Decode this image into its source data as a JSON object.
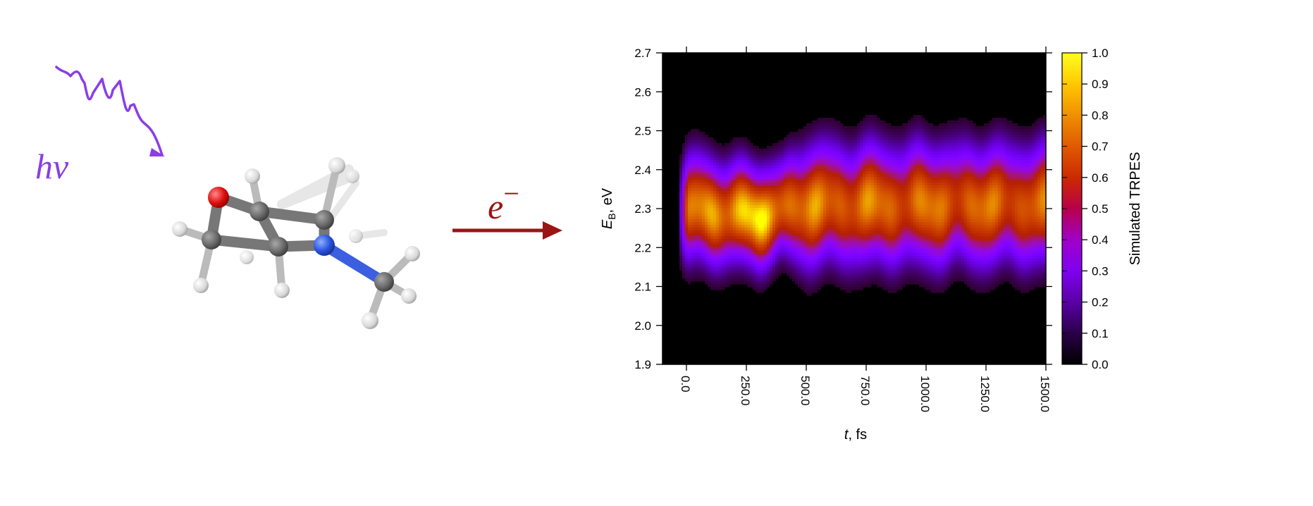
{
  "photon_label": "hv",
  "electron_label": "e",
  "electron_superscript": "−",
  "colors": {
    "photon": "#8a3ee6",
    "arrow": "#9b1414",
    "oxygen": "#e01010",
    "nitrogen": "#2a55e0",
    "carbon": "#6b6b6b",
    "hydrogen": "#d8d8d8"
  },
  "chart_data": {
    "type": "heatmap",
    "title": "",
    "xlabel_var": "t",
    "xlabel_unit": ", fs",
    "ylabel_var": "E",
    "ylabel_sub": "B",
    "ylabel_unit": ", eV",
    "x_range": [
      -100,
      1500
    ],
    "y_range": [
      1.9,
      2.7
    ],
    "x_ticks": [
      "0.0",
      "250.0",
      "500.0",
      "750.0",
      "1000.0",
      "1250.0",
      "1500.0"
    ],
    "x_tick_values": [
      0,
      250,
      500,
      750,
      1000,
      1250,
      1500
    ],
    "y_ticks": [
      "1.9",
      "2.0",
      "2.1",
      "2.2",
      "2.3",
      "2.4",
      "2.5",
      "2.6",
      "2.7"
    ],
    "y_tick_values": [
      1.9,
      2.0,
      2.1,
      2.2,
      2.3,
      2.4,
      2.5,
      2.6,
      2.7
    ],
    "colorbar_label": "Simulated TRPES",
    "colorbar_range": [
      0,
      1
    ],
    "colorbar_ticks": [
      "0.0",
      "0.1",
      "0.2",
      "0.3",
      "0.4",
      "0.5",
      "0.6",
      "0.7",
      "0.8",
      "0.9",
      "1.0"
    ],
    "colormap": "gnuplot (black-purple-red-orange-yellow)",
    "signal_band": {
      "center_eV": [
        [
          0,
          2.3
        ],
        [
          300,
          2.28
        ],
        [
          500,
          2.31
        ],
        [
          1500,
          2.31
        ]
      ],
      "fwhm_eV": [
        [
          0,
          0.18
        ],
        [
          400,
          0.16
        ],
        [
          500,
          0.2
        ],
        [
          1500,
          0.2
        ]
      ],
      "peak_intensity": [
        [
          0,
          0.7
        ],
        [
          250,
          0.95
        ],
        [
          350,
          0.85
        ],
        [
          500,
          0.75
        ],
        [
          1500,
          0.7
        ]
      ],
      "onset_fs": -20
    }
  }
}
